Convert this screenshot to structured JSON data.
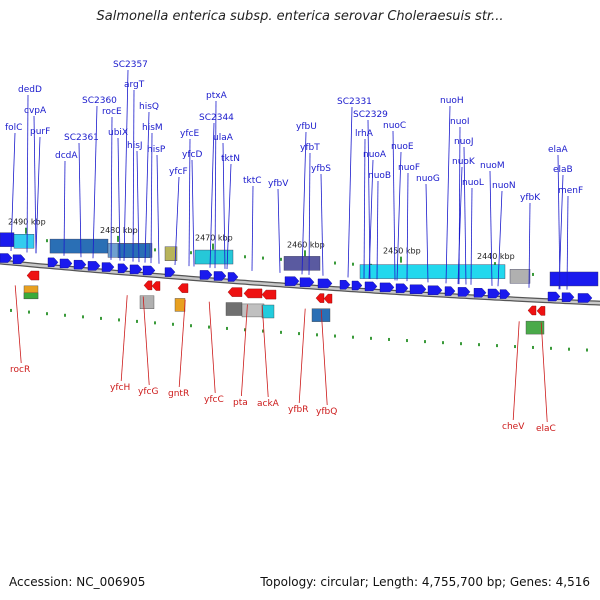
{
  "title": "Salmonella enterica subsp. enterica serovar Choleraesuis str...",
  "footer": {
    "accession": "Accession: NC_006905",
    "stats": "Topology: circular; Length: 4,755,700 bp; Genes: 4,516"
  },
  "colors": {
    "forward_gene": "#1a1aee",
    "reverse_gene": "#ee1111",
    "forward_label": "#1a1acc",
    "reverse_label": "#cc1a1a",
    "backbone": "#808080"
  },
  "scale_labels": [
    "2490 kbp",
    "2480 kbp",
    "2470 kbp",
    "2460 kbp",
    "2450 kbp",
    "2440 kbp"
  ],
  "forward_genes": [
    "folC",
    "dedD",
    "cvpA",
    "purF",
    "dcdA",
    "SC2361",
    "SC2360",
    "rocE",
    "ubiX",
    "SC2357",
    "argT",
    "hisJ",
    "hisQ",
    "hisM",
    "hisP",
    "yfcF",
    "yfcE",
    "yfcD",
    "SC2344",
    "ptxA",
    "ulaA",
    "tktN",
    "tktC",
    "yfbV",
    "yfbU",
    "yfbT",
    "yfbS",
    "SC2331",
    "lrhA",
    "SC2329",
    "nuoA",
    "nuoB",
    "nuoC",
    "nuoE",
    "nuoF",
    "nuoG",
    "nuoH",
    "nuoI",
    "nuoJ",
    "nuoK",
    "nuoL",
    "nuoM",
    "nuoN",
    "yfbK",
    "elaA",
    "elaB",
    "menF"
  ],
  "reverse_genes": [
    "rocR",
    "yfcH",
    "yfcG",
    "gntR",
    "yfcC",
    "pta",
    "ackA",
    "yfbR",
    "yfbQ",
    "cheV",
    "elaC"
  ]
}
